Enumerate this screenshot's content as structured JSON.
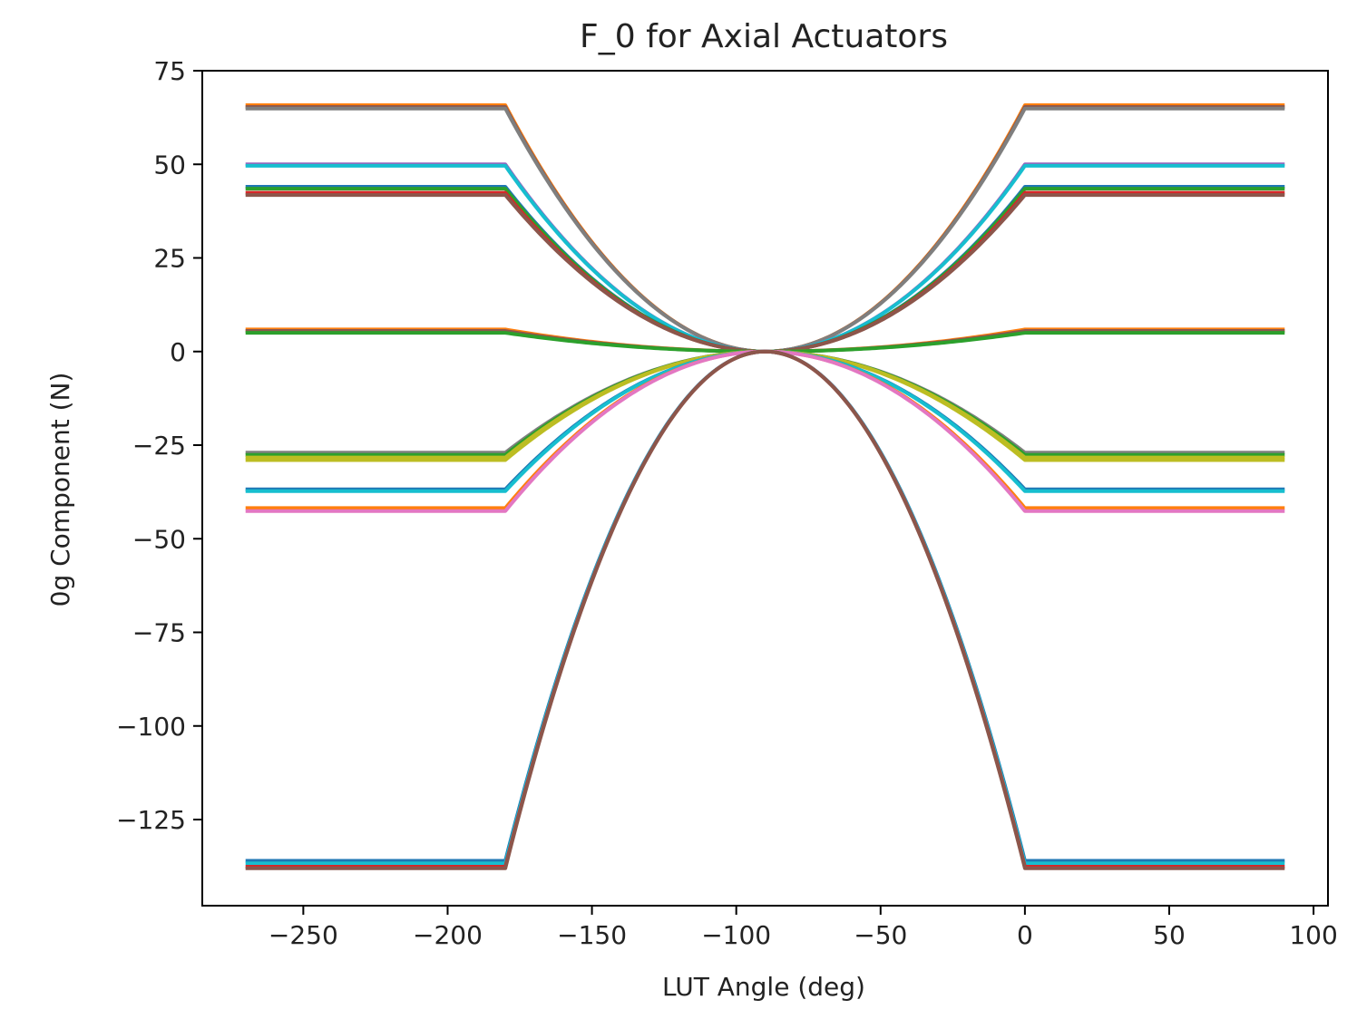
{
  "chart_data": {
    "type": "line",
    "title": "F_0 for Axial Actuators",
    "xlabel": "LUT Angle (deg)",
    "ylabel": "0g Component (N)",
    "xlim": [
      -285,
      105
    ],
    "ylim": [
      -148,
      75
    ],
    "xticks": [
      -250,
      -200,
      -150,
      -100,
      -50,
      0,
      50,
      100
    ],
    "yticks": [
      75,
      50,
      25,
      0,
      -25,
      -50,
      -75,
      -100,
      -125
    ],
    "xtick_labels": [
      "−250",
      "−200",
      "−150",
      "−100",
      "−50",
      "0",
      "50",
      "100"
    ],
    "ytick_labels": [
      "75",
      "50",
      "25",
      "0",
      "−25",
      "−50",
      "−75",
      "−100",
      "−125"
    ],
    "grid": false,
    "legend": "none",
    "x_domain": [
      -270,
      90
    ],
    "plateau_start": -180,
    "plateau_end": 0,
    "center": -90,
    "series": [
      {
        "plateau": 65.8,
        "color": "#ff7f0e"
      },
      {
        "plateau": 65.3,
        "color": "#8c564b"
      },
      {
        "plateau": 64.9,
        "color": "#7f7f7f"
      },
      {
        "plateau": 50.0,
        "color": "#9467bd"
      },
      {
        "plateau": 49.6,
        "color": "#17becf"
      },
      {
        "plateau": 44.0,
        "color": "#1f77b4"
      },
      {
        "plateau": 43.5,
        "color": "#2ca02c"
      },
      {
        "plateau": 42.4,
        "color": "#d62728"
      },
      {
        "plateau": 41.8,
        "color": "#8c564b"
      },
      {
        "plateau": 5.9,
        "color": "#ff7f0e"
      },
      {
        "plateau": 5.5,
        "color": "#8c564b"
      },
      {
        "plateau": 5.0,
        "color": "#2ca02c"
      },
      {
        "plateau": -27.0,
        "color": "#7f7f7f"
      },
      {
        "plateau": -27.6,
        "color": "#2ca02c"
      },
      {
        "plateau": -28.3,
        "color": "#bcbd22"
      },
      {
        "plateau": -29.0,
        "color": "#bcbd22"
      },
      {
        "plateau": -36.8,
        "color": "#1f77b4"
      },
      {
        "plateau": -37.3,
        "color": "#17becf"
      },
      {
        "plateau": -41.8,
        "color": "#ff7f0e"
      },
      {
        "plateau": -42.6,
        "color": "#e377c2"
      },
      {
        "plateau": -136.0,
        "color": "#1f77b4"
      },
      {
        "plateau": -136.7,
        "color": "#17becf"
      },
      {
        "plateau": -137.6,
        "color": "#d62728"
      },
      {
        "plateau": -138.0,
        "color": "#8c564b"
      }
    ]
  }
}
